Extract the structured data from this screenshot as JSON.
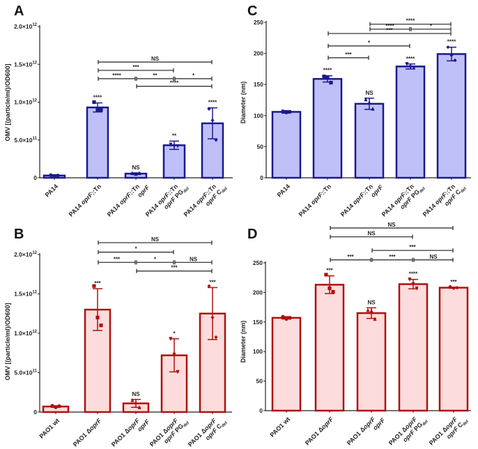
{
  "chart_data": [
    {
      "panel": "A",
      "type": "bar",
      "ylabel": "OMV [(particle/ml)/OD600]",
      "ylim": [
        0,
        2000000000000.0
      ],
      "yticks": [
        0,
        500000000000.0,
        1000000000000.0,
        1500000000000.0,
        2000000000000.0
      ],
      "ytick_labels": [
        "0",
        "5.0×10^11",
        "1.0×10^12",
        "1.5×10^12",
        "2.0×10^12"
      ],
      "categories": [
        [
          "PA14"
        ],
        [
          "PA14 oprF::Tn"
        ],
        [
          "PA14 oprF::Tn",
          "oprF"
        ],
        [
          "PA14 oprF::Tn",
          "oprF PG_del"
        ],
        [
          "PA14 oprF::Tn",
          "oprF C_del"
        ]
      ],
      "values": [
        30000000000.0,
        930000000000.0,
        55000000000.0,
        430000000000.0,
        720000000000.0
      ],
      "errors": [
        10000000000.0,
        60000000000.0,
        10000000000.0,
        55000000000.0,
        205000000000.0
      ],
      "points": [
        [
          35000000000.0,
          25000000000.0,
          30000000000.0
        ],
        [
          1000000000000.0,
          900000000000.0,
          900000000000.0
        ],
        [
          60000000000.0,
          50000000000.0,
          60000000000.0
        ],
        [
          440000000000.0,
          420000000000.0,
          420000000000.0
        ],
        [
          910000000000.0,
          760000000000.0,
          500000000000.0
        ]
      ],
      "bar_labels": [
        "",
        "****",
        "NS",
        "**",
        "****"
      ],
      "brackets": [
        {
          "from": 1,
          "to": 4,
          "y": 1530000000000.0,
          "label": "NS"
        },
        {
          "from": 1,
          "to": 3,
          "y": 1420000000000.0,
          "label": "***"
        },
        {
          "from": 1,
          "to": 2,
          "y": 1310000000000.0,
          "label": "****"
        },
        {
          "from": 2,
          "to": 3,
          "y": 1310000000000.0,
          "label": "**"
        },
        {
          "from": 3,
          "to": 4,
          "y": 1310000000000.0,
          "label": "*"
        },
        {
          "from": 2,
          "to": 4,
          "y": 1210000000000.0,
          "label": "****"
        }
      ],
      "colors": {
        "stroke": "#1a1a8c",
        "fill": "#c0c0f8"
      }
    },
    {
      "panel": "C",
      "type": "bar",
      "ylabel": "Diameter (nm)",
      "ylim": [
        0,
        250
      ],
      "yticks": [
        0,
        50,
        100,
        150,
        200,
        250
      ],
      "ytick_labels": [
        "0",
        "50",
        "100",
        "150",
        "200",
        "250"
      ],
      "categories": [
        [
          "PA14"
        ],
        [
          "PA14 oprF::Tn"
        ],
        [
          "PA14 oprF::Tn",
          "oprF"
        ],
        [
          "PA14 oprF::Tn",
          "oprF PG_del"
        ],
        [
          "PA14 oprF::Tn",
          "oprF C_del"
        ]
      ],
      "values": [
        106,
        159,
        119,
        179,
        199
      ],
      "errors": [
        2,
        5,
        9,
        4,
        11
      ],
      "points": [
        [
          107,
          105,
          106
        ],
        [
          163,
          162,
          153
        ],
        [
          126,
          121,
          111
        ],
        [
          183,
          178,
          177
        ],
        [
          210,
          197,
          189
        ]
      ],
      "bar_labels": [
        "",
        "****",
        "NS",
        "****",
        "****"
      ],
      "brackets": [
        {
          "from": 2,
          "to": 4,
          "y": 247,
          "label": "****"
        },
        {
          "from": 2,
          "to": 3,
          "y": 239,
          "label": "****"
        },
        {
          "from": 3,
          "to": 4,
          "y": 239,
          "label": "*"
        },
        {
          "from": 1,
          "to": 4,
          "y": 232,
          "label": "***"
        },
        {
          "from": 1,
          "to": 3,
          "y": 212,
          "label": "*"
        },
        {
          "from": 1,
          "to": 2,
          "y": 193,
          "label": "***"
        }
      ],
      "colors": {
        "stroke": "#1a1a8c",
        "fill": "#c0c0f8"
      }
    },
    {
      "panel": "B",
      "type": "bar",
      "ylabel": "OMV [(particle/ml)/OD600]",
      "ylim": [
        0,
        2000000000000.0
      ],
      "yticks": [
        0,
        500000000000.0,
        1000000000000.0,
        1500000000000.0,
        2000000000000.0
      ],
      "ytick_labels": [
        "0",
        "5.0×10^11",
        "1.0×10^12",
        "1.5×10^12",
        "2.0×10^12"
      ],
      "categories": [
        [
          "PAO1 wt"
        ],
        [
          "PAO1 ΔoprF"
        ],
        [
          "PAO1 ΔoprF",
          "oprF"
        ],
        [
          "PAO1 ΔoprF",
          "oprF PG_del"
        ],
        [
          "PAO1 ΔoprF",
          "oprF C_del"
        ]
      ],
      "values": [
        70000000000.0,
        1300000000000.0,
        110000000000.0,
        720000000000.0,
        1250000000000.0
      ],
      "errors": [
        10000000000.0,
        265000000000.0,
        50000000000.0,
        210000000000.0,
        330000000000.0
      ],
      "points": [
        [
          80000000000.0,
          60000000000.0,
          75000000000.0
        ],
        [
          1600000000000.0,
          1200000000000.0,
          1100000000000.0
        ],
        [
          150000000000.0,
          120000000000.0,
          60000000000.0
        ],
        [
          930000000000.0,
          730000000000.0,
          510000000000.0
        ],
        [
          1600000000000.0,
          1200000000000.0,
          950000000000.0
        ]
      ],
      "bar_labels": [
        "",
        "***",
        "NS",
        "*",
        "***"
      ],
      "brackets": [
        {
          "from": 1,
          "to": 4,
          "y": 2150000000000.0,
          "label": "NS"
        },
        {
          "from": 1,
          "to": 3,
          "y": 2030000000000.0,
          "label": "*"
        },
        {
          "from": 1,
          "to": 2,
          "y": 1900000000000.0,
          "label": "***"
        },
        {
          "from": 2,
          "to": 3,
          "y": 1900000000000.0,
          "label": "*"
        },
        {
          "from": 3,
          "to": 4,
          "y": 1900000000000.0,
          "label": "NS"
        },
        {
          "from": 2,
          "to": 4,
          "y": 1790000000000.0,
          "label": "***"
        }
      ],
      "colors": {
        "stroke": "#b01010",
        "fill": "#fcdcdc"
      }
    },
    {
      "panel": "D",
      "type": "bar",
      "ylabel": "Diameter (nm)",
      "ylim": [
        0,
        250
      ],
      "yticks": [
        0,
        50,
        100,
        150,
        200,
        250
      ],
      "ytick_labels": [
        "0",
        "50",
        "100",
        "150",
        "200",
        "250"
      ],
      "categories": [
        [
          "PAO1 wt"
        ],
        [
          "PAO1 ΔoprF"
        ],
        [
          "PAO1 ΔoprF",
          "oprF"
        ],
        [
          "PAO1 ΔoprF",
          "oprF PG_del"
        ],
        [
          "PAO1 ΔoprF",
          "oprF C_del"
        ]
      ],
      "values": [
        157,
        213,
        165,
        214,
        208
      ],
      "errors": [
        2,
        15,
        9,
        8,
        1
      ],
      "points": [
        [
          159,
          155,
          157
        ],
        [
          230,
          207,
          201
        ],
        [
          170,
          169,
          155
        ],
        [
          222,
          214,
          207
        ],
        [
          210,
          207,
          208
        ]
      ],
      "bar_labels": [
        "",
        "***",
        "NS",
        "****",
        "***"
      ],
      "brackets": [
        {
          "from": 1,
          "to": 4,
          "y": 309,
          "label": "NS"
        },
        {
          "from": 1,
          "to": 3,
          "y": 294,
          "label": "NS"
        },
        {
          "from": 2,
          "to": 4,
          "y": 271,
          "label": "***"
        },
        {
          "from": 1,
          "to": 2,
          "y": 255,
          "label": "***"
        },
        {
          "from": 2,
          "to": 3,
          "y": 255,
          "label": "***"
        },
        {
          "from": 3,
          "to": 4,
          "y": 255,
          "label": "NS"
        }
      ],
      "colors": {
        "stroke": "#b01010",
        "fill": "#fcdcdc"
      }
    }
  ]
}
